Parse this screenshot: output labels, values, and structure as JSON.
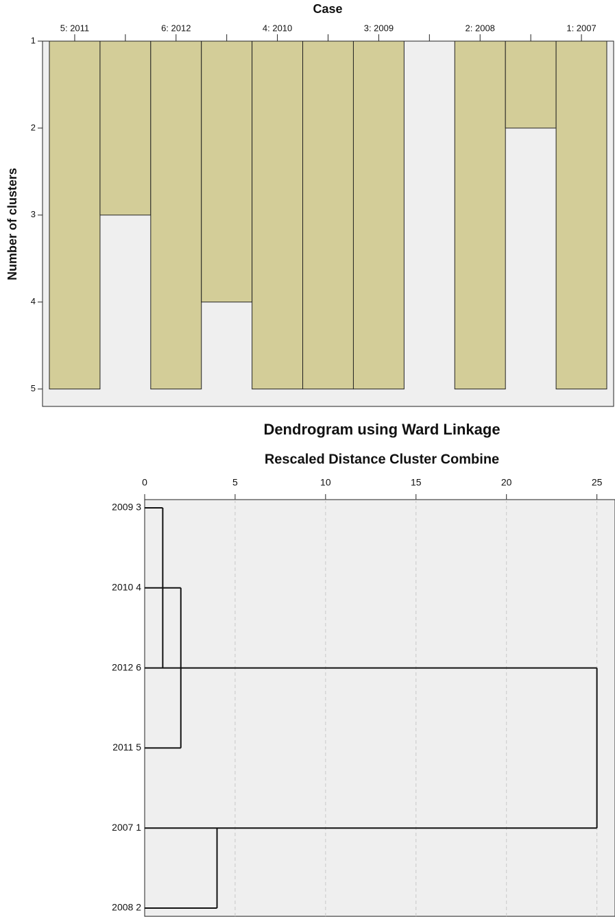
{
  "chart_data": [
    {
      "type": "icicle",
      "xlabel": "Case",
      "ylabel": "Number of clusters",
      "categories": [
        "5: 2011",
        null,
        "6: 2012",
        null,
        "4: 2010",
        null,
        "3: 2009",
        null,
        "2: 2008",
        null,
        "1: 2007"
      ],
      "values": [
        5,
        3,
        5,
        4,
        5,
        5,
        5,
        null,
        5,
        2,
        5
      ],
      "color": "#d3cd98",
      "y_inverted": true,
      "ylim": [
        1,
        5.2
      ],
      "yticks": [
        1,
        2,
        3,
        4,
        5
      ]
    },
    {
      "type": "dendrogram",
      "title": "Dendrogram using Ward Linkage",
      "subtitle": "Rescaled Distance Cluster Combine",
      "leaves": [
        "2009 3",
        "2010 4",
        "2012 6",
        "2011 5",
        "2007 1",
        "2008 2"
      ],
      "merges": [
        {
          "leaves": [
            0,
            2
          ],
          "distance": 1
        },
        {
          "leaves": [
            1,
            3
          ],
          "distance": 2
        },
        {
          "leaves": [
            4,
            5
          ],
          "distance": 4
        },
        {
          "leaves": [
            2,
            4
          ],
          "distance": 25
        }
      ],
      "xlim": [
        0,
        26
      ],
      "xticks": [
        0,
        5,
        10,
        15,
        20,
        25
      ],
      "grid": true
    }
  ]
}
